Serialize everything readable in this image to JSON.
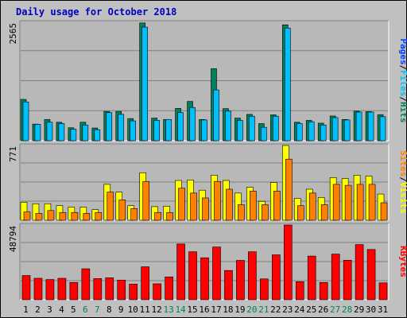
{
  "chart_data": [
    {
      "type": "bar",
      "title": "Daily usage for October 2018",
      "ylabel_max": "2565",
      "legend": [
        "Pages",
        "Files",
        "Hits"
      ],
      "categories": [
        "1",
        "2",
        "3",
        "4",
        "5",
        "6",
        "7",
        "8",
        "9",
        "10",
        "11",
        "12",
        "13",
        "14",
        "15",
        "16",
        "17",
        "18",
        "19",
        "20",
        "21",
        "22",
        "23",
        "24",
        "25",
        "26",
        "27",
        "28",
        "29",
        "30",
        "31"
      ],
      "weekend_days": [
        "6",
        "7",
        "13",
        "14",
        "20",
        "21",
        "27",
        "28"
      ],
      "series": [
        {
          "name": "Hits",
          "values": [
            895,
            360,
            460,
            400,
            280,
            400,
            275,
            635,
            635,
            480,
            2550,
            490,
            460,
            700,
            850,
            460,
            1560,
            695,
            490,
            570,
            370,
            560,
            2510,
            400,
            440,
            380,
            535,
            460,
            640,
            630,
            565
          ]
        },
        {
          "name": "Files",
          "values": [
            840,
            355,
            400,
            370,
            250,
            340,
            240,
            610,
            570,
            430,
            2460,
            440,
            460,
            610,
            720,
            450,
            1100,
            640,
            440,
            530,
            290,
            530,
            2440,
            375,
            410,
            340,
            500,
            450,
            620,
            620,
            520
          ]
        },
        {
          "name": "Pages",
          "values": [
            0,
            0,
            0,
            0,
            0,
            0,
            0,
            0,
            0,
            0,
            0,
            0,
            0,
            0,
            0,
            0,
            0,
            0,
            0,
            0,
            0,
            0,
            0,
            0,
            0,
            0,
            0,
            0,
            0,
            0,
            0
          ]
        }
      ],
      "colors": {
        "Hits": "#00805c",
        "Files": "#00c0ff",
        "Pages": "#0040ff"
      }
    },
    {
      "type": "bar",
      "ylabel_max": "771",
      "legend": [
        "Sites",
        "Visits"
      ],
      "series": [
        {
          "name": "Visits",
          "values": [
            185,
            170,
            170,
            150,
            135,
            135,
            110,
            370,
            290,
            150,
            490,
            140,
            145,
            410,
            415,
            310,
            465,
            410,
            280,
            340,
            195,
            390,
            771,
            225,
            320,
            235,
            440,
            430,
            465,
            455,
            270
          ]
        },
        {
          "name": "Sites",
          "values": [
            85,
            70,
            100,
            80,
            80,
            70,
            80,
            290,
            210,
            120,
            400,
            80,
            80,
            330,
            280,
            230,
            400,
            320,
            160,
            300,
            160,
            300,
            630,
            150,
            280,
            160,
            370,
            360,
            370,
            370,
            180
          ]
        }
      ],
      "colors": {
        "Visits": "#ffff00",
        "Sites": "#ff8000"
      }
    },
    {
      "type": "bar",
      "ylabel_max": "48794",
      "legend": [
        "KBytes"
      ],
      "series": [
        {
          "name": "KBytes",
          "values": [
            15800,
            14000,
            13200,
            14000,
            11300,
            20200,
            13800,
            14300,
            12800,
            10200,
            21500,
            10400,
            14900,
            36400,
            31300,
            27400,
            34400,
            19100,
            25700,
            31300,
            13600,
            29300,
            48794,
            11800,
            28500,
            11300,
            29800,
            25800,
            36000,
            32800,
            11000
          ]
        }
      ],
      "colors": {
        "KBytes": "#ff0000"
      }
    }
  ]
}
